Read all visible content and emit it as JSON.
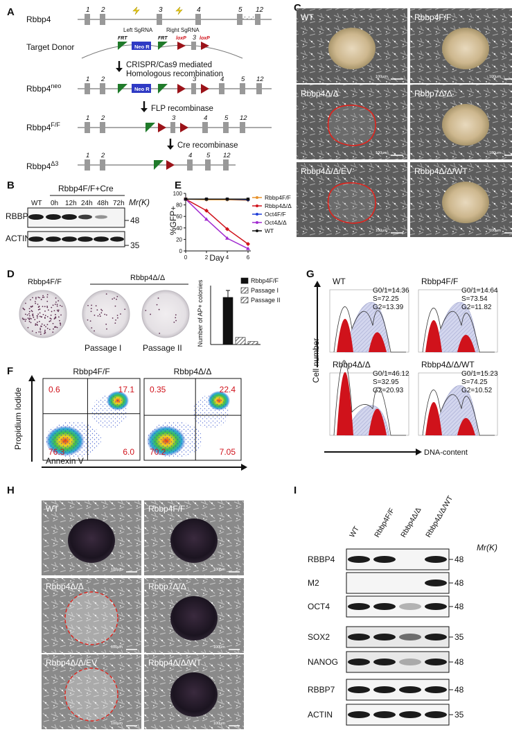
{
  "panel_letters": [
    "A",
    "B",
    "C",
    "D",
    "E",
    "F",
    "G",
    "H",
    "I"
  ],
  "panelA": {
    "rows": [
      {
        "label": "Rbbp4"
      },
      {
        "label": "Target Donor"
      },
      {
        "label": "Rbbp4",
        "sup": "neo"
      },
      {
        "label": "Rbbp4",
        "sup": "F/F"
      },
      {
        "label": "Rbbp4",
        "sup": "Δ3"
      }
    ],
    "sgrna_left": "Left SgRNA",
    "sgrna_right": "Right SgRNA",
    "arrow1_line1": "CRISPR/Cas9 mediated",
    "arrow1_line2": "Homologous   recombination",
    "arrow2": "FLP recombinase",
    "arrow3": "Cre recombinase",
    "neo": "Neo R",
    "frt": "FRT",
    "loxp": "loxP",
    "exons_wt": [
      "1",
      "2",
      "3",
      "4",
      "5",
      "12"
    ]
  },
  "panelB": {
    "header": "Rbbp4F/F+Cre",
    "lanes": [
      "WT",
      "0h",
      "12h",
      "24h",
      "48h",
      "72h"
    ],
    "mr": "Mr(K)",
    "rows": [
      "RBBP4",
      "ACTIN"
    ],
    "markers": [
      "48",
      "35"
    ]
  },
  "panelC": {
    "labels": [
      "WT",
      "Rbbp4F/F",
      "Rbbp4Δ/Δ",
      "Rbbp7Δ/Δ",
      "Rbbp4Δ/Δ/EV",
      "Rbbp4Δ/Δ/WT"
    ],
    "scale": "100μm"
  },
  "panelD": {
    "labels": [
      "Rbbp4F/F",
      "Rbbp4Δ/Δ",
      "Passage I",
      "Passage II"
    ],
    "ylabel": "Number of AP+ colonies",
    "legend": [
      "Rbbp4F/F",
      "Passage I",
      "Passage II"
    ],
    "chart_data": {
      "type": "bar",
      "categories": [
        "Rbbp4F/F",
        "Passage I",
        "Passage II"
      ],
      "values": [
        800,
        120,
        50
      ],
      "ylim": [
        0,
        1000
      ]
    }
  },
  "panelE": {
    "ylabel": "%GFP+",
    "xlabel": "Day",
    "yticks": [
      "0",
      "20",
      "40",
      "60",
      "80",
      "100"
    ],
    "xticks": [
      "0",
      "2",
      "4",
      "6"
    ],
    "chart_data": {
      "type": "line",
      "x": [
        0,
        2,
        4,
        6
      ],
      "ylim": [
        0,
        100
      ],
      "series": [
        {
          "name": "Rbbp4F/F",
          "color": "#e8922b",
          "values": [
            90,
            89,
            89,
            88
          ]
        },
        {
          "name": "Rbbp4Δ/Δ",
          "color": "#d0121b",
          "values": [
            90,
            70,
            38,
            12
          ]
        },
        {
          "name": "Oct4F/F",
          "color": "#1f3fd8",
          "values": [
            90,
            90,
            90,
            89
          ]
        },
        {
          "name": "Oct4Δ/Δ",
          "color": "#a12bd0",
          "values": [
            90,
            55,
            22,
            4
          ]
        },
        {
          "name": "WT",
          "color": "#111111",
          "values": [
            90,
            90,
            90,
            90
          ]
        }
      ]
    }
  },
  "panelF": {
    "titles": [
      "Rbbp4F/F",
      "Rbbp4Δ/Δ"
    ],
    "ylabel": "Propidium Iodide",
    "xlabel": "Annexin V",
    "quadrants": [
      [
        "0.6",
        "17.1",
        "76.3",
        "6.0"
      ],
      [
        "0.35",
        "22.4",
        "70.2",
        "7.05"
      ]
    ]
  },
  "panelG": {
    "ylabel": "Cell number",
    "xlabel": "DNA-content",
    "plots": [
      {
        "title": "WT",
        "g01": "G0/1=14.36",
        "s": "S=72.25",
        "g2": "G2=13.39"
      },
      {
        "title": "Rbbp4F/F",
        "g01": "G0/1=14.64",
        "s": "S=73.54",
        "g2": "G2=11.82"
      },
      {
        "title": "Rbbp4Δ/Δ",
        "g01": "G0/1=46.12",
        "s": "S=32.95",
        "g2": "G2=20.93"
      },
      {
        "title": "Rbbp4Δ/Δ/WT",
        "g01": "G0/1=15.23",
        "s": "S=74.25",
        "g2": "G2=10.52"
      }
    ]
  },
  "panelH": {
    "labels": [
      "WT",
      "Rbbp4F/F",
      "Rbbp4Δ/Δ",
      "Rbbp7Δ/Δ",
      "Rbbp4Δ/Δ/EV",
      "Rbbp4Δ/Δ/WT"
    ],
    "scale": "100μm"
  },
  "panelI": {
    "lanes": [
      "WT",
      "Rbbp4F/F",
      "Rbbp4Δ/Δ",
      "Rbbp4Δ/Δ/WT"
    ],
    "mr": "Mr(K)",
    "rows": [
      "RBBP4",
      "M2",
      "OCT4",
      "SOX2",
      "NANOG",
      "RBBP7",
      "ACTIN"
    ],
    "markers": [
      "48",
      "48",
      "48",
      "35",
      "48",
      "48",
      "35"
    ]
  }
}
